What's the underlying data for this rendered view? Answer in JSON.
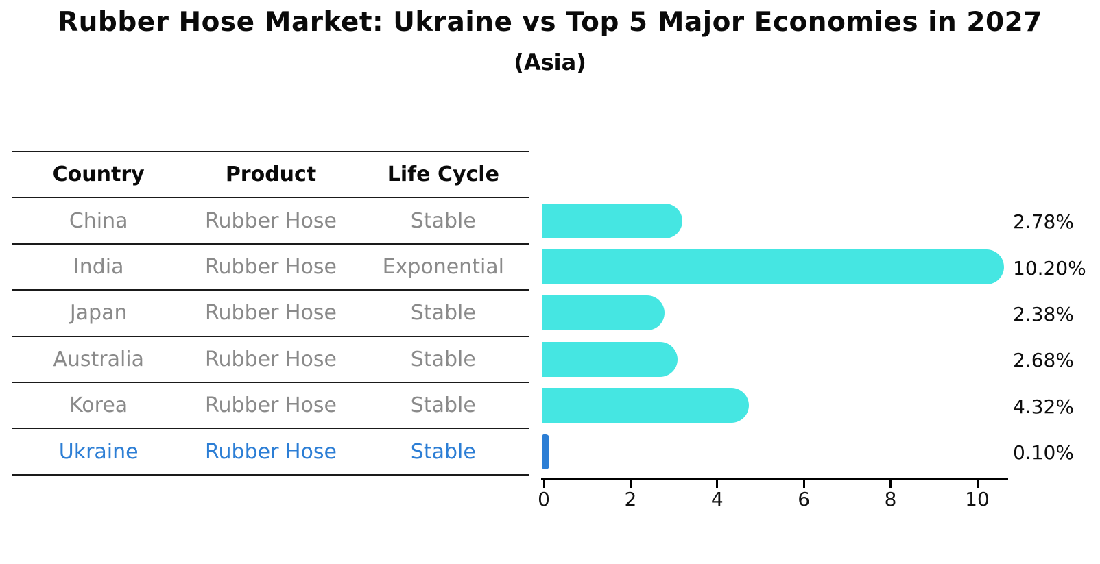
{
  "title": "Rubber Hose Market: Ukraine vs Top 5 Major Economies in 2027",
  "subtitle": "(Asia)",
  "table": {
    "headers": [
      "Country",
      "Product",
      "Life Cycle"
    ],
    "rows": [
      {
        "country": "China",
        "product": "Rubber Hose",
        "life_cycle": "Stable",
        "highlight": false
      },
      {
        "country": "India",
        "product": "Rubber Hose",
        "life_cycle": "Exponential",
        "highlight": false
      },
      {
        "country": "Japan",
        "product": "Rubber Hose",
        "life_cycle": "Stable",
        "highlight": false
      },
      {
        "country": "Australia",
        "product": "Rubber Hose",
        "life_cycle": "Stable",
        "highlight": false
      },
      {
        "country": "Korea",
        "product": "Rubber Hose",
        "life_cycle": "Stable",
        "highlight": true
      }
    ]
  },
  "chart_data": {
    "type": "bar",
    "orientation": "horizontal",
    "title": "Rubber Hose Market: Ukraine vs Top 5 Major Economies in 2027",
    "subtitle": "(Asia)",
    "categories": [
      "China",
      "India",
      "Japan",
      "Australia",
      "Korea",
      "Ukraine"
    ],
    "values": [
      2.78,
      10.2,
      2.38,
      2.68,
      4.32,
      0.1
    ],
    "value_labels": [
      "2.78%",
      "10.20%",
      "2.38%",
      "2.68%",
      "4.32%",
      "0.10%"
    ],
    "highlight_category": "Ukraine",
    "x_ticks": [
      0,
      2,
      4,
      6,
      8,
      10
    ],
    "x_tick_labels": [
      "0",
      "2",
      "4",
      "6",
      "8",
      "10"
    ],
    "xlim": [
      0,
      10.7
    ],
    "grid": false,
    "legend": "none",
    "bar_color": "#45e6e2",
    "highlight_color": "#2c7ed5"
  },
  "colors": {
    "bar": "#45e6e2",
    "highlight": "#2c7ed5",
    "table_text": "#8a8a8a",
    "header_text": "#0a0a0a",
    "line": "#1a1a1a"
  }
}
